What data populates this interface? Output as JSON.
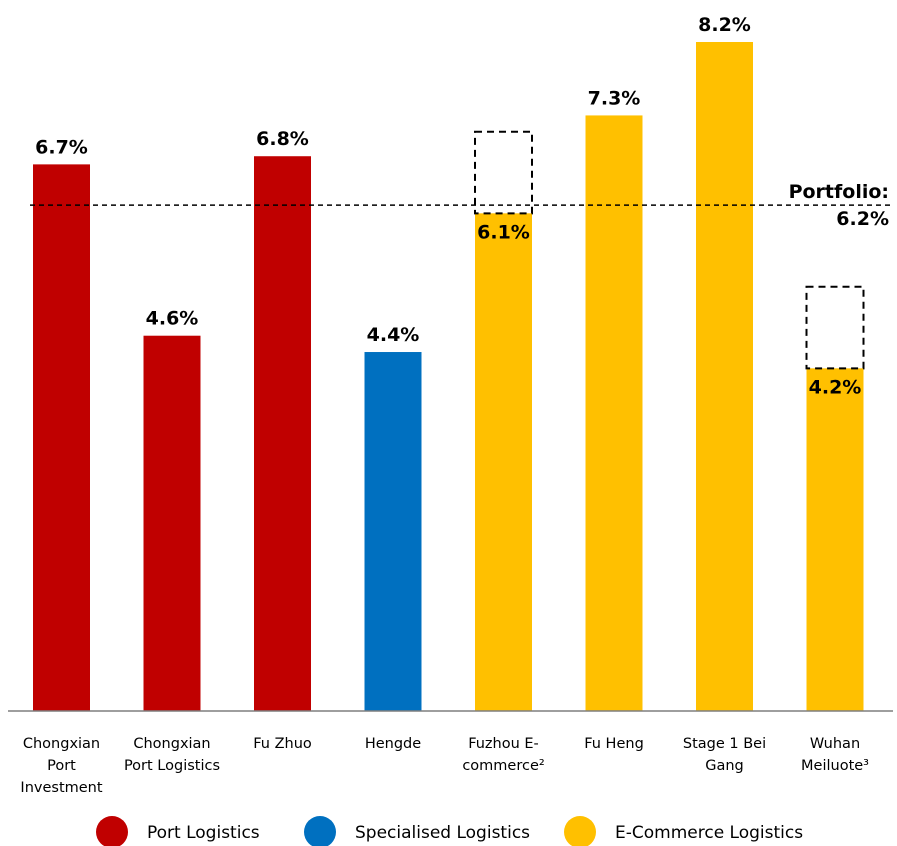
{
  "chart_data": {
    "type": "bar",
    "categories": [
      "Chongxian Port Investment",
      "Chongxian Port Logistics",
      "Fu Zhuo",
      "Hengde",
      "Fuzhou E-commerce²",
      "Fu Heng",
      "Stage 1 Bei Gang",
      "Wuhan Meiluote³"
    ],
    "category_lines": [
      [
        "Chongxian",
        "Port",
        "Investment"
      ],
      [
        "Chongxian",
        "Port Logistics"
      ],
      [
        "Fu Zhuo"
      ],
      [
        "Hengde"
      ],
      [
        "Fuzhou E-",
        "commerce²"
      ],
      [
        "Fu Heng"
      ],
      [
        "Stage 1 Bei",
        "Gang"
      ],
      [
        "Wuhan",
        "Meiluote³"
      ]
    ],
    "values": [
      6.7,
      4.6,
      6.8,
      4.4,
      6.1,
      7.3,
      8.2,
      4.2
    ],
    "data_labels": [
      "6.7%",
      "4.6%",
      "6.8%",
      "4.4%",
      "6.1%",
      "7.3%",
      "8.2%",
      "4.2%"
    ],
    "groups": [
      "Port Logistics",
      "Port Logistics",
      "Port Logistics",
      "Specialised Logistics",
      "E-Commerce Logistics",
      "E-Commerce Logistics",
      "E-Commerce Logistics",
      "E-Commerce Logistics"
    ],
    "dashed_extension_tops": [
      null,
      null,
      null,
      null,
      7.1,
      null,
      null,
      5.2
    ],
    "reference_line": {
      "value": 6.2,
      "label_line1": "Portfolio:",
      "label_line2": "6.2%"
    },
    "legend": [
      {
        "name": "Port Logistics",
        "color": "#C00000"
      },
      {
        "name": "Specialised Logistics",
        "color": "#0070C0"
      },
      {
        "name": "E-Commerce Logistics",
        "color": "#FFC000"
      }
    ],
    "ylim": [
      0,
      8.2
    ],
    "title": "",
    "xlabel": "",
    "ylabel": "",
    "grid": false,
    "legend_position": "bottom"
  }
}
